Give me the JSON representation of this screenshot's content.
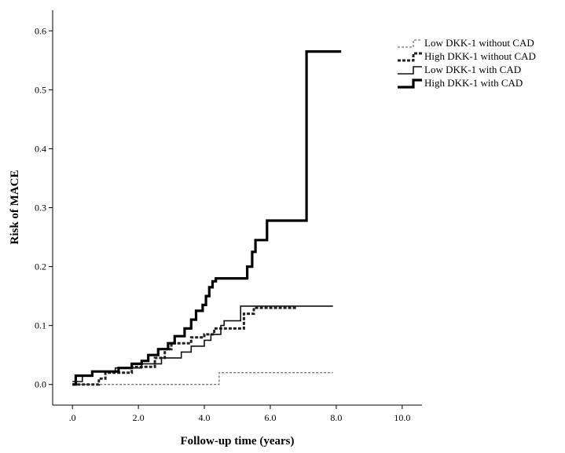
{
  "chart_data": {
    "type": "line",
    "subtype": "step",
    "xlabel": "Follow-up time (years)",
    "ylabel": "Risk of MACE",
    "xlim": [
      -0.6,
      10.6
    ],
    "ylim": [
      -0.035,
      0.635
    ],
    "xticks": [
      0,
      2,
      4,
      6,
      8,
      10
    ],
    "xtick_labels": [
      ".0",
      "2.0",
      "4.0",
      "6.0",
      "8.0",
      "10.0"
    ],
    "yticks": [
      0,
      0.1,
      0.2,
      0.3,
      0.4,
      0.5,
      0.6
    ],
    "ytick_labels": [
      "0.0",
      "0.1",
      "0.2",
      "0.3",
      "0.4",
      "0.5",
      "0.6"
    ],
    "grid": false,
    "legend_position": "top-right",
    "series": [
      {
        "name": "Low DKK-1 without CAD",
        "style": "dotted-thin",
        "points": [
          [
            0,
            0
          ],
          [
            4.45,
            0
          ],
          [
            4.45,
            0.02
          ],
          [
            7.9,
            0.02
          ]
        ]
      },
      {
        "name": "High DKK-1 without CAD",
        "style": "dotted-thick",
        "points": [
          [
            0,
            0
          ],
          [
            0.8,
            0
          ],
          [
            0.8,
            0.01
          ],
          [
            1.0,
            0.01
          ],
          [
            1.0,
            0.02
          ],
          [
            1.8,
            0.02
          ],
          [
            1.8,
            0.03
          ],
          [
            2.5,
            0.03
          ],
          [
            2.5,
            0.045
          ],
          [
            2.8,
            0.045
          ],
          [
            2.8,
            0.06
          ],
          [
            3.0,
            0.06
          ],
          [
            3.0,
            0.07
          ],
          [
            3.6,
            0.07
          ],
          [
            3.6,
            0.08
          ],
          [
            4.0,
            0.08
          ],
          [
            4.0,
            0.085
          ],
          [
            4.3,
            0.085
          ],
          [
            4.3,
            0.095
          ],
          [
            5.2,
            0.095
          ],
          [
            5.2,
            0.12
          ],
          [
            5.5,
            0.12
          ],
          [
            5.5,
            0.13
          ],
          [
            6.8,
            0.13
          ]
        ]
      },
      {
        "name": "Low DKK-1 with CAD",
        "style": "solid-thin",
        "points": [
          [
            0,
            0.005
          ],
          [
            0.3,
            0.005
          ],
          [
            0.3,
            0.015
          ],
          [
            0.6,
            0.015
          ],
          [
            0.6,
            0.022
          ],
          [
            1.3,
            0.022
          ],
          [
            1.3,
            0.028
          ],
          [
            2.1,
            0.028
          ],
          [
            2.1,
            0.035
          ],
          [
            2.7,
            0.035
          ],
          [
            2.7,
            0.045
          ],
          [
            3.3,
            0.045
          ],
          [
            3.3,
            0.055
          ],
          [
            3.6,
            0.055
          ],
          [
            3.6,
            0.065
          ],
          [
            4.0,
            0.065
          ],
          [
            4.0,
            0.075
          ],
          [
            4.2,
            0.075
          ],
          [
            4.2,
            0.085
          ],
          [
            4.5,
            0.085
          ],
          [
            4.5,
            0.1
          ],
          [
            4.6,
            0.1
          ],
          [
            4.6,
            0.108
          ],
          [
            5.1,
            0.108
          ],
          [
            5.1,
            0.133
          ],
          [
            7.9,
            0.133
          ]
        ]
      },
      {
        "name": "High DKK-1 with CAD",
        "style": "solid-thick",
        "points": [
          [
            0,
            0
          ],
          [
            0.1,
            0
          ],
          [
            0.1,
            0.015
          ],
          [
            0.6,
            0.015
          ],
          [
            0.6,
            0.022
          ],
          [
            1.4,
            0.022
          ],
          [
            1.4,
            0.028
          ],
          [
            1.8,
            0.028
          ],
          [
            1.8,
            0.035
          ],
          [
            2.1,
            0.035
          ],
          [
            2.1,
            0.04
          ],
          [
            2.3,
            0.04
          ],
          [
            2.3,
            0.05
          ],
          [
            2.6,
            0.05
          ],
          [
            2.6,
            0.06
          ],
          [
            2.9,
            0.06
          ],
          [
            2.9,
            0.07
          ],
          [
            3.1,
            0.07
          ],
          [
            3.1,
            0.082
          ],
          [
            3.4,
            0.082
          ],
          [
            3.4,
            0.095
          ],
          [
            3.6,
            0.095
          ],
          [
            3.6,
            0.11
          ],
          [
            3.75,
            0.11
          ],
          [
            3.75,
            0.125
          ],
          [
            3.95,
            0.125
          ],
          [
            3.95,
            0.135
          ],
          [
            4.05,
            0.135
          ],
          [
            4.05,
            0.15
          ],
          [
            4.15,
            0.15
          ],
          [
            4.15,
            0.165
          ],
          [
            4.25,
            0.165
          ],
          [
            4.25,
            0.175
          ],
          [
            4.35,
            0.175
          ],
          [
            4.35,
            0.18
          ],
          [
            5.3,
            0.18
          ],
          [
            5.3,
            0.2
          ],
          [
            5.45,
            0.2
          ],
          [
            5.45,
            0.225
          ],
          [
            5.55,
            0.225
          ],
          [
            5.55,
            0.245
          ],
          [
            5.9,
            0.245
          ],
          [
            5.9,
            0.278
          ],
          [
            7.1,
            0.278
          ],
          [
            7.1,
            0.565
          ],
          [
            8.15,
            0.565
          ]
        ]
      }
    ]
  }
}
